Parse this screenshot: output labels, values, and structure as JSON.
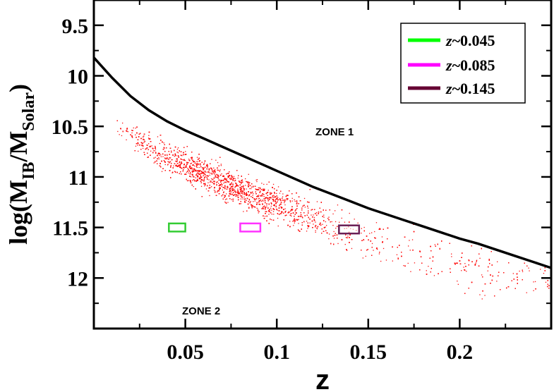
{
  "chart_data": {
    "type": "scatter",
    "title": "",
    "xlabel": "z",
    "ylabel": {
      "main": "log(M",
      "sub1": "IB",
      "mid": "/M",
      "sub2": "Solar",
      "end": ")"
    },
    "xlim": [
      0.0,
      0.25
    ],
    "ylim_inverted": [
      9.25,
      12.5
    ],
    "x_ticks": [
      0.05,
      0.1,
      0.15,
      0.2
    ],
    "x_tick_labels": [
      "0.05",
      "0.1",
      "0.15",
      "0.2"
    ],
    "y_ticks": [
      9.5,
      10,
      10.5,
      11,
      11.5,
      12
    ],
    "y_tick_labels": [
      "9.5",
      "10",
      "10.5",
      "11",
      "11.5",
      "12"
    ],
    "annotations": [
      {
        "text": "ZONE 1",
        "x": 0.147,
        "y": 10.55
      },
      {
        "text": "ZONE 2",
        "x": 0.065,
        "y": 12.3
      }
    ],
    "curve": {
      "name": "boundary",
      "color": "#000000",
      "x": [
        0.0,
        0.01,
        0.02,
        0.03,
        0.04,
        0.05,
        0.06,
        0.07,
        0.08,
        0.09,
        0.1,
        0.11,
        0.12,
        0.13,
        0.14,
        0.15,
        0.16,
        0.17,
        0.18,
        0.19,
        0.2,
        0.21,
        0.22,
        0.23,
        0.24,
        0.25
      ],
      "y": [
        9.82,
        10.02,
        10.2,
        10.34,
        10.45,
        10.54,
        10.62,
        10.7,
        10.78,
        10.86,
        10.94,
        11.02,
        11.1,
        11.17,
        11.24,
        11.31,
        11.37,
        11.43,
        11.49,
        11.55,
        11.61,
        11.66,
        11.72,
        11.78,
        11.84,
        11.9
      ]
    },
    "scatter": {
      "name": "galaxies",
      "color": "#ff1010",
      "description_ridge_x": [
        0.02,
        0.04,
        0.06,
        0.08,
        0.1,
        0.12,
        0.14,
        0.16,
        0.18,
        0.2,
        0.22,
        0.24
      ],
      "description_ridge_y": [
        10.6,
        10.8,
        10.97,
        11.13,
        11.28,
        11.42,
        11.55,
        11.67,
        11.78,
        11.87,
        11.95,
        12.02
      ]
    },
    "boxes": [
      {
        "name": "z~0.045",
        "color": "#33cc33",
        "x": [
          0.041,
          0.05
        ],
        "y": [
          11.46,
          11.54
        ]
      },
      {
        "name": "z~0.085",
        "color": "#ff33ff",
        "x": [
          0.08,
          0.091
        ],
        "y": [
          11.46,
          11.54
        ]
      },
      {
        "name": "z~0.145",
        "color": "#6a1f55",
        "x": [
          0.134,
          0.145
        ],
        "y": [
          11.48,
          11.56
        ]
      }
    ],
    "legend": {
      "position": "top-right",
      "entries": [
        {
          "label_prefix": "z",
          "label_value": "~0.045",
          "color": "#00ff00"
        },
        {
          "label_prefix": "z",
          "label_value": "~0.085",
          "color": "#ff00ff"
        },
        {
          "label_prefix": "z",
          "label_value": "~0.145",
          "color": "#660033"
        }
      ]
    }
  }
}
